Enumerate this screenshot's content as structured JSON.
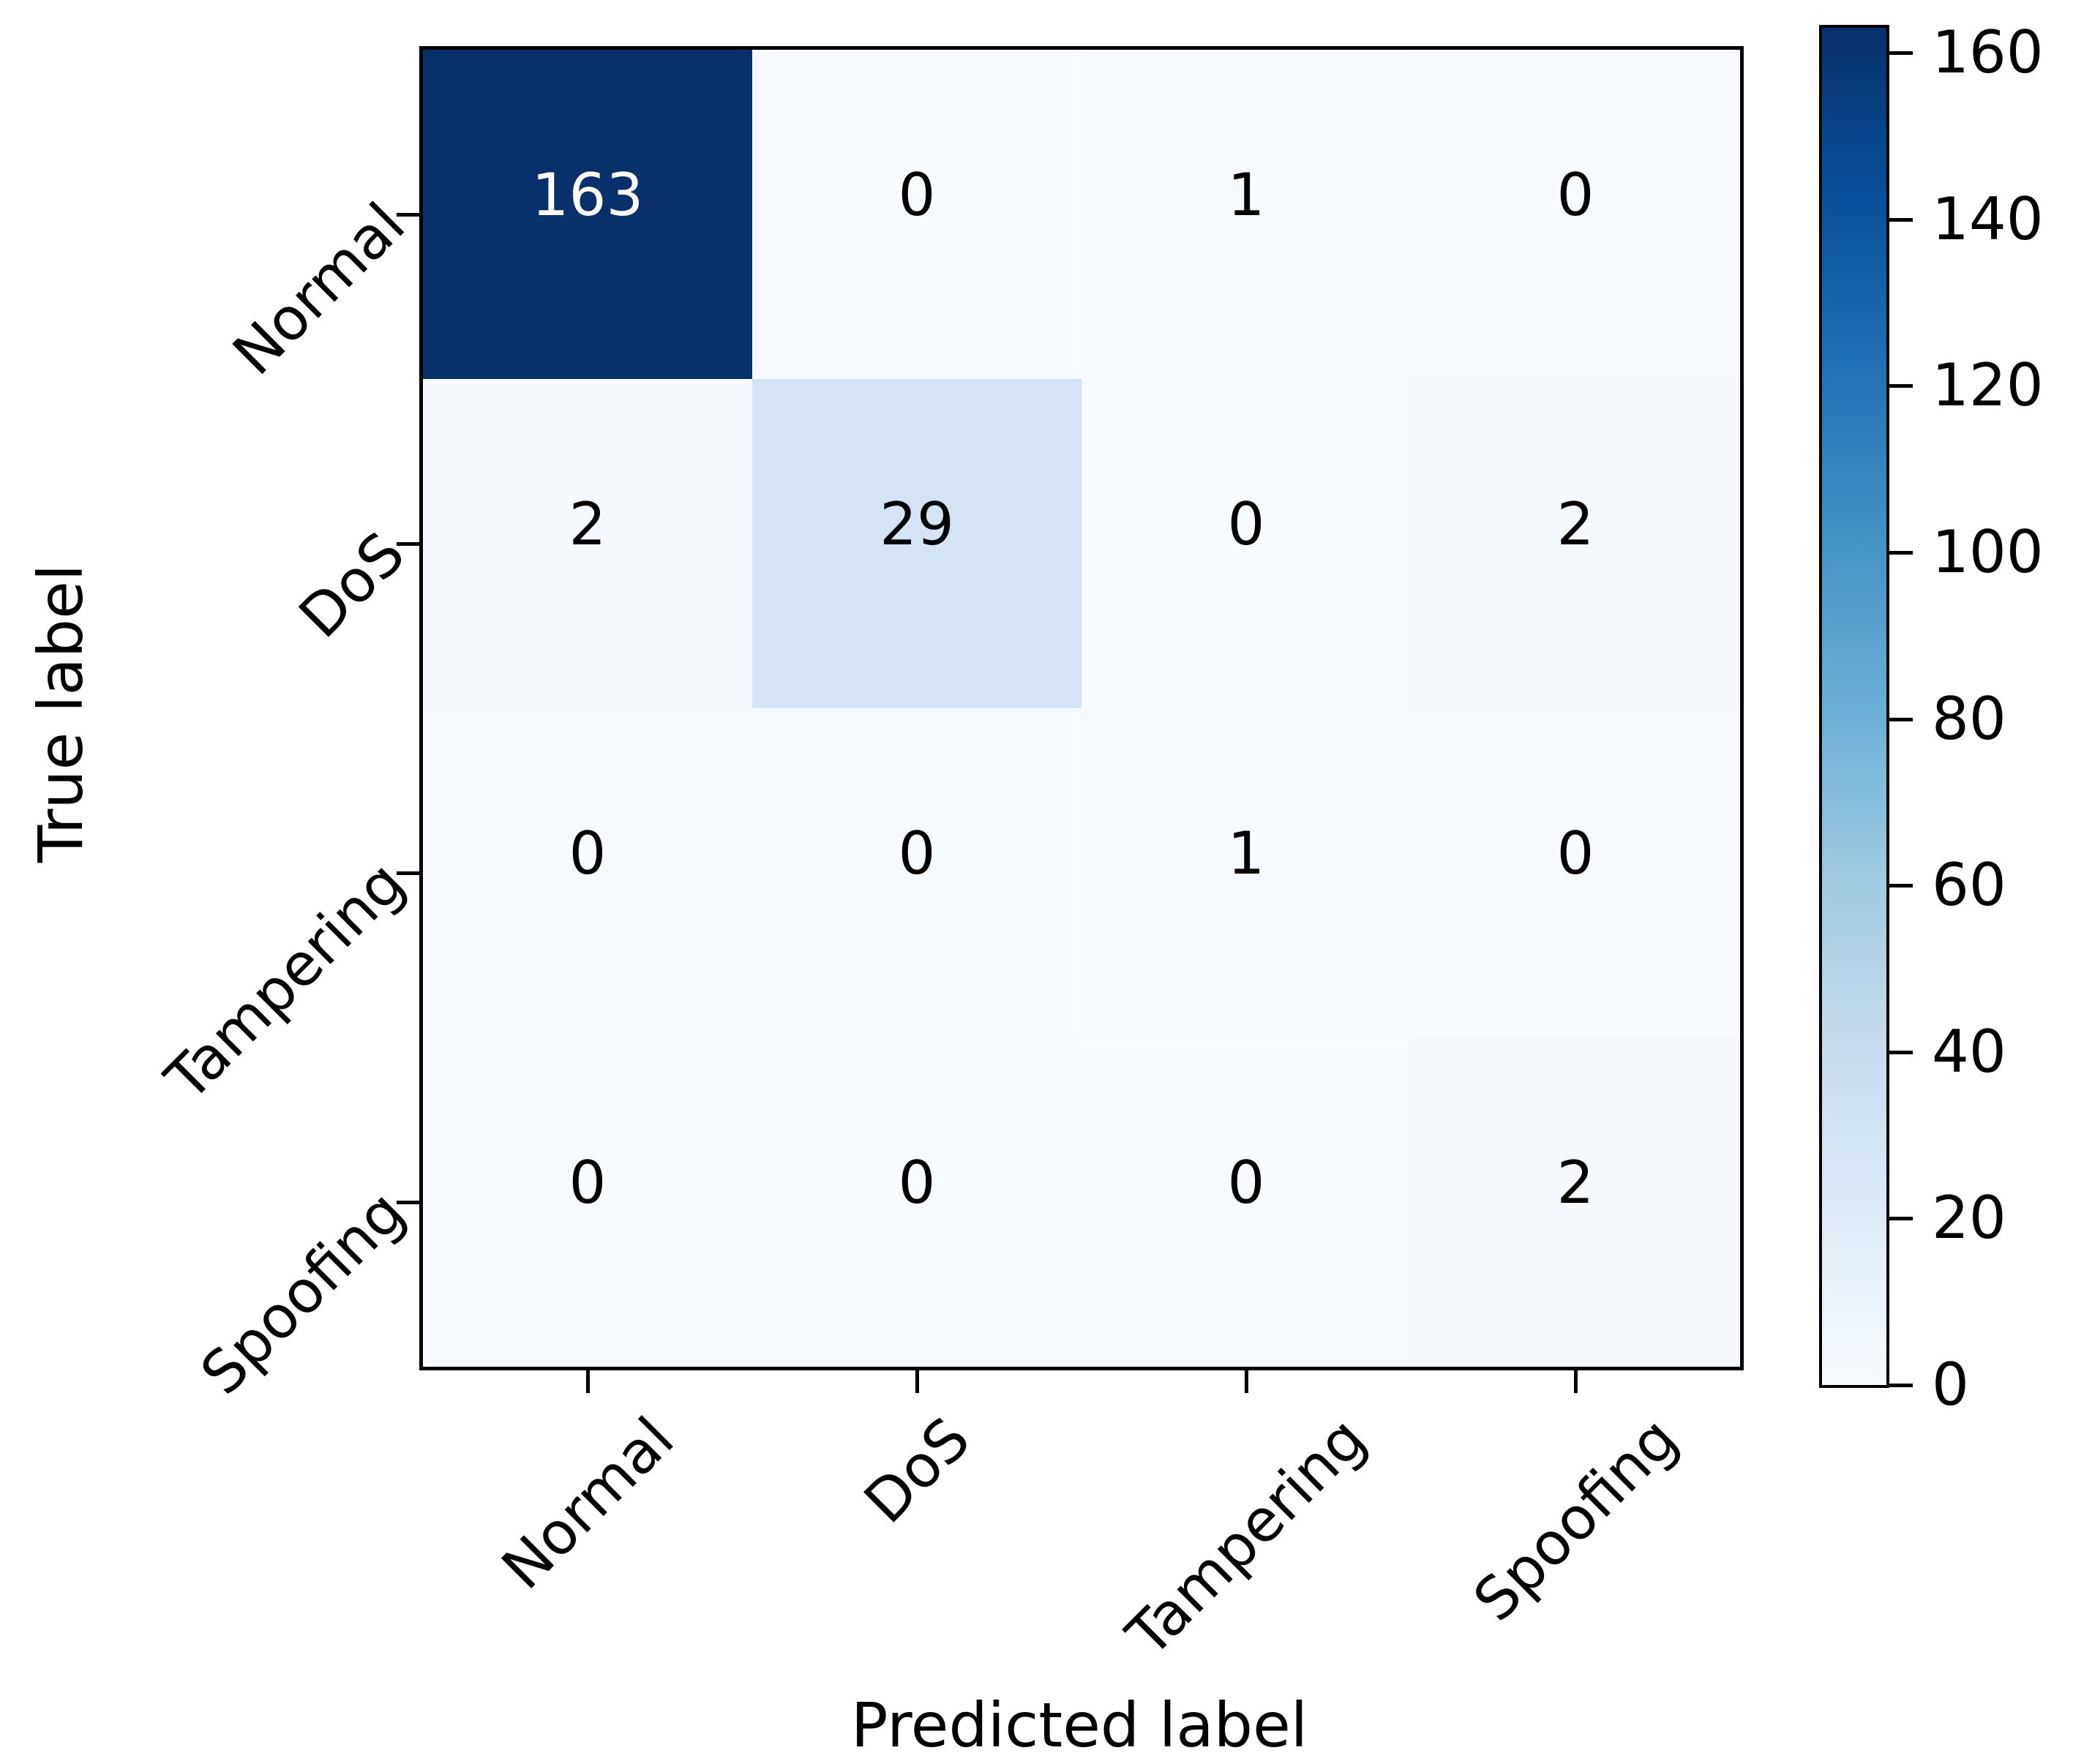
{
  "chart_data": {
    "type": "heatmap",
    "subtype": "confusion-matrix",
    "title": "",
    "xlabel": "Predicted label",
    "ylabel": "True label",
    "x_tick_labels": [
      "Normal",
      "DoS",
      "Tampering",
      "Spoofing"
    ],
    "y_tick_labels": [
      "Normal",
      "DoS",
      "Tampering",
      "Spoofing"
    ],
    "tick_label_rotation_deg": 45,
    "matrix": [
      [
        163,
        0,
        1,
        0
      ],
      [
        2,
        29,
        0,
        2
      ],
      [
        0,
        0,
        1,
        0
      ],
      [
        0,
        0,
        0,
        2
      ]
    ],
    "vmin": 0,
    "vmax": 163,
    "grid": false,
    "legend": false,
    "colormap": "Blues",
    "colormap_stops": [
      "#f7fbff",
      "#deebf7",
      "#c6dbef",
      "#9ecae1",
      "#6baed6",
      "#4292c6",
      "#2171b5",
      "#08519c",
      "#08306b"
    ],
    "colorbar": {
      "position": "right",
      "ticks": [
        0,
        20,
        40,
        60,
        80,
        100,
        120,
        140,
        160
      ]
    },
    "colors": {
      "background": "#ffffff",
      "axis": "#000000",
      "annotation_on_dark": "#ffffff",
      "annotation_on_light": "#000000"
    }
  }
}
